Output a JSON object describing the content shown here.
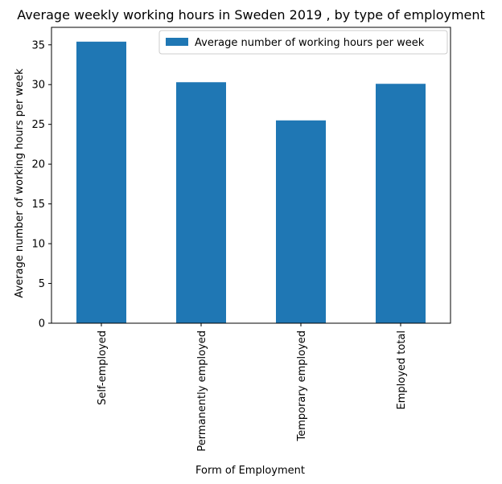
{
  "chart_data": {
    "type": "bar",
    "title": "Average weekly working hours in Sweden 2019 , by type of employment",
    "xlabel": "Form of Employment",
    "ylabel": "Average number of working hours per week",
    "categories": [
      "Self-employed",
      "Permanently employed",
      "Temporary employed",
      "Employed total"
    ],
    "series": [
      {
        "name": "Average number of working hours per week",
        "values": [
          35.4,
          30.3,
          25.5,
          30.1
        ],
        "color": "#1f77b4"
      }
    ],
    "ylim": [
      0,
      37.2
    ],
    "yticks": [
      0,
      5,
      10,
      15,
      20,
      25,
      30,
      35
    ],
    "grid": false,
    "legend_position": "top-right"
  }
}
